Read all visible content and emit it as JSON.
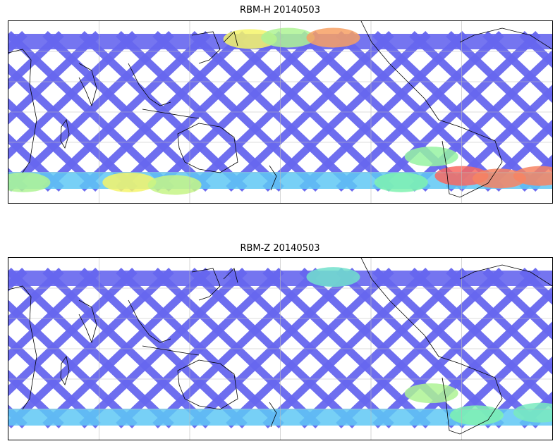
{
  "panels": [
    {
      "title": "RBM-H 20140503",
      "lat_extent": [
        -60,
        60
      ],
      "colormap": {
        "low": "#6666ee",
        "mid_low": "#5fc8f5",
        "mid": "#7ff2b0",
        "mid_high": "#f5f56a",
        "high": "#f86860"
      },
      "hotspots": [
        {
          "lon": 100,
          "lat": -55,
          "level": 0.75
        },
        {
          "lon": 130,
          "lat": -57,
          "level": 0.65
        },
        {
          "lon": 180,
          "lat": 56,
          "level": 0.75
        },
        {
          "lon": 205,
          "lat": 57,
          "level": 0.6
        },
        {
          "lon": 235,
          "lat": 57,
          "level": 0.9
        },
        {
          "lon": 320,
          "lat": -50,
          "level": 1.0
        },
        {
          "lon": 345,
          "lat": -52,
          "level": 0.95
        },
        {
          "lon": 300,
          "lat": -35,
          "level": 0.55
        },
        {
          "lon": 12,
          "lat": -50,
          "level": 0.95
        },
        {
          "lon": 30,
          "lat": -55,
          "level": 0.6
        },
        {
          "lon": 280,
          "lat": -55,
          "level": 0.5
        }
      ]
    },
    {
      "title": "RBM-Z 20140503",
      "lat_extent": [
        -60,
        60
      ],
      "colormap": {
        "low": "#6666ee",
        "mid_low": "#5fc8f5",
        "mid": "#7ff2b0",
        "mid_high": "#f5f56a",
        "high": "#f86860"
      },
      "hotspots": [
        {
          "lon": 300,
          "lat": -35,
          "level": 0.6
        },
        {
          "lon": 330,
          "lat": -52,
          "level": 0.5
        },
        {
          "lon": 12,
          "lat": -50,
          "level": 0.45
        },
        {
          "lon": 235,
          "lat": 55,
          "level": 0.4
        }
      ]
    }
  ]
}
